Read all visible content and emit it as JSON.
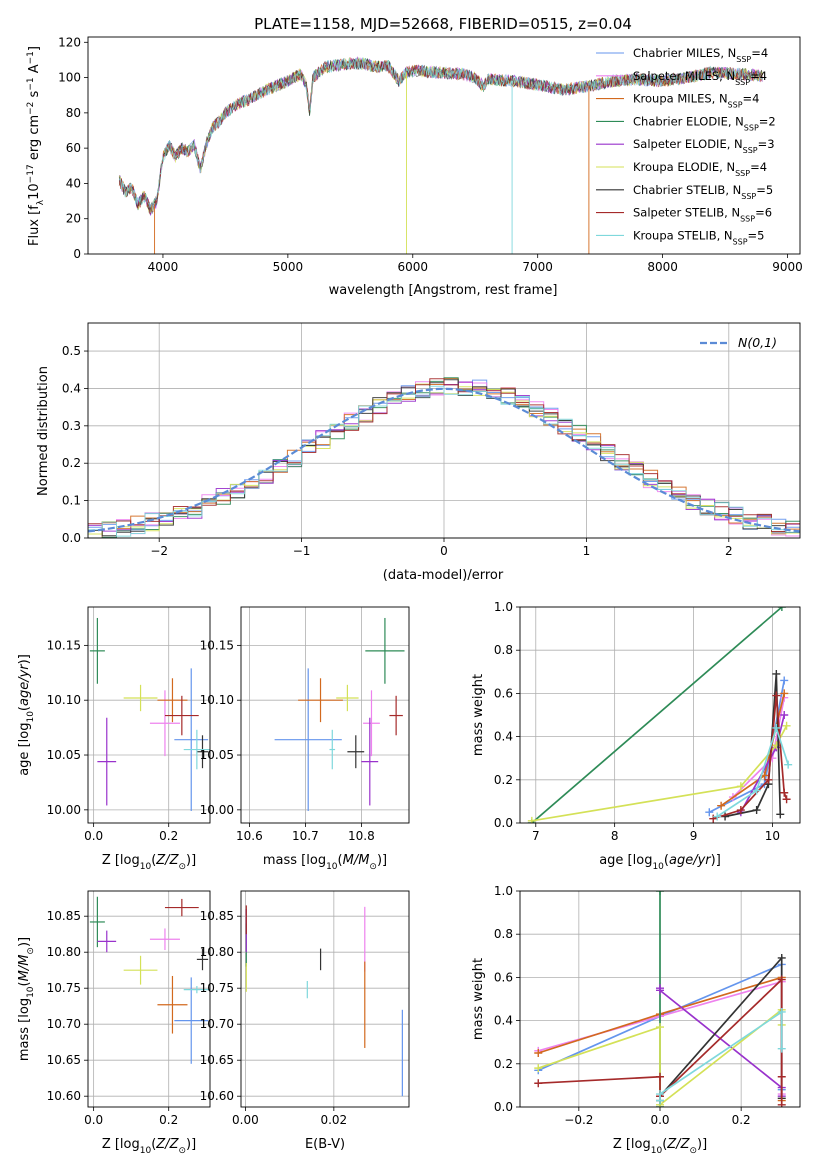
{
  "figure": {
    "title": "PLATE=1158, MJD=52668, FIBERID=0515, z=0.04"
  },
  "chart_data": [
    {
      "id": "spectrum",
      "type": "line",
      "xlabel": "wavelength [Angstrom, rest frame]",
      "ylabel": "Flux [f_λ 10^-17 erg cm^-2 s^-1 A^-1]",
      "xlim": [
        3400,
        9100
      ],
      "ylim": [
        0,
        123
      ],
      "xticks": [
        4000,
        5000,
        6000,
        7000,
        8000,
        9000
      ],
      "yticks": [
        0,
        20,
        40,
        60,
        80,
        100,
        120
      ],
      "grid": false,
      "legend_position": "upper-right",
      "flux_profile": {
        "x": [
          3650,
          3700,
          3750,
          3800,
          3850,
          3900,
          3950,
          4000,
          4050,
          4100,
          4150,
          4200,
          4250,
          4300,
          4350,
          4400,
          4450,
          4500,
          4600,
          4700,
          4800,
          4900,
          5000,
          5100,
          5150,
          5175,
          5200,
          5300,
          5400,
          5500,
          5600,
          5700,
          5800,
          5890,
          5950,
          6000,
          6200,
          6400,
          6500,
          6563,
          6600,
          6800,
          7000,
          7200,
          7400,
          7600,
          7800,
          8000,
          8200,
          8400,
          8600,
          8800
        ],
        "y": [
          42,
          35,
          38,
          28,
          33,
          25,
          30,
          55,
          62,
          55,
          60,
          58,
          62,
          48,
          63,
          72,
          75,
          80,
          85,
          88,
          92,
          95,
          98,
          102,
          95,
          80,
          100,
          106,
          107,
          108,
          108,
          106,
          107,
          98,
          103,
          104,
          103,
          102,
          100,
          95,
          99,
          98,
          96,
          93,
          95,
          98,
          99,
          98,
          100,
          103,
          102,
          101
        ]
      },
      "series": [
        {
          "name": "Chabrier MILES, N_SSP=4",
          "color": "#6495ed"
        },
        {
          "name": "Salpeter MILES, N_SSP=4",
          "color": "#ee82ee"
        },
        {
          "name": "Kroupa MILES, N_SSP=4",
          "color": "#d2691e"
        },
        {
          "name": "Chabrier ELODIE, N_SSP=2",
          "color": "#2e8b57"
        },
        {
          "name": "Salpeter ELODIE, N_SSP=3",
          "color": "#9932cc"
        },
        {
          "name": "Kroupa ELODIE, N_SSP=4",
          "color": "#d4e157"
        },
        {
          "name": "Chabrier STELIB, N_SSP=5",
          "color": "#333333"
        },
        {
          "name": "Salpeter STELIB, N_SSP=6",
          "color": "#a52a2a"
        },
        {
          "name": "Kroupa STELIB, N_SSP=5",
          "color": "#7fd8dc"
        }
      ]
    },
    {
      "id": "residuals",
      "type": "area",
      "xlabel": "(data-model)/error",
      "ylabel": "Normed distribution",
      "xlim": [
        -2.5,
        2.5
      ],
      "ylim": [
        0,
        0.575
      ],
      "xticks": [
        -2,
        -1,
        0,
        1,
        2
      ],
      "yticks": [
        0.0,
        0.1,
        0.2,
        0.3,
        0.4,
        0.5
      ],
      "grid": true,
      "legend": "N(0,1)",
      "legend_position": "upper-right",
      "reference": {
        "type": "gaussian",
        "mean": 0,
        "sigma": 1,
        "color": "#5b8bd6"
      }
    },
    {
      "id": "age-vs-metallicity",
      "type": "scatter",
      "xlabel": "Z [log10(Z/Z⊙)]",
      "ylabel": "age [log10(age/yr)]",
      "xlim": [
        -0.015,
        0.31
      ],
      "ylim": [
        9.988,
        10.185
      ],
      "xticks": [
        0.0,
        0.2
      ],
      "yticks": [
        10.0,
        10.05,
        10.1,
        10.15
      ],
      "grid": true,
      "points": [
        {
          "series": 0,
          "x": 0.26,
          "y": 10.064,
          "xerr": 0.045,
          "yerr": 0.065
        },
        {
          "series": 1,
          "x": 0.19,
          "y": 10.079,
          "xerr": 0.04,
          "yerr": 0.03
        },
        {
          "series": 2,
          "x": 0.21,
          "y": 10.1,
          "xerr": 0.04,
          "yerr": 0.02
        },
        {
          "series": 3,
          "x": 0.01,
          "y": 10.145,
          "xerr": 0.02,
          "yerr": 0.03
        },
        {
          "series": 4,
          "x": 0.035,
          "y": 10.044,
          "xerr": 0.025,
          "yerr": 0.04
        },
        {
          "series": 5,
          "x": 0.125,
          "y": 10.102,
          "xerr": 0.045,
          "yerr": 0.012
        },
        {
          "series": 6,
          "x": 0.29,
          "y": 10.053,
          "xerr": 0.015,
          "yerr": 0.015
        },
        {
          "series": 7,
          "x": 0.235,
          "y": 10.086,
          "xerr": 0.045,
          "yerr": 0.018
        },
        {
          "series": 8,
          "x": 0.275,
          "y": 10.055,
          "xerr": 0.035,
          "yerr": 0.018
        }
      ]
    },
    {
      "id": "age-vs-mass",
      "type": "scatter",
      "xlabel": "mass [log10(M/M⊙)]",
      "ylabel": "",
      "xlim": [
        10.585,
        10.885
      ],
      "ylim": [
        9.988,
        10.185
      ],
      "xticks": [
        10.6,
        10.7,
        10.8
      ],
      "yticks": [
        10.0,
        10.05,
        10.1,
        10.15
      ],
      "grid": true,
      "points": [
        {
          "series": 0,
          "x": 10.705,
          "y": 10.064,
          "xerr": 0.06,
          "yerr": 0.065
        },
        {
          "series": 1,
          "x": 10.818,
          "y": 10.079,
          "xerr": 0.015,
          "yerr": 0.03
        },
        {
          "series": 2,
          "x": 10.727,
          "y": 10.1,
          "xerr": 0.04,
          "yerr": 0.02
        },
        {
          "series": 3,
          "x": 10.842,
          "y": 10.145,
          "xerr": 0.035,
          "yerr": 0.03
        },
        {
          "series": 4,
          "x": 10.815,
          "y": 10.044,
          "xerr": 0.015,
          "yerr": 0.04
        },
        {
          "series": 5,
          "x": 10.775,
          "y": 10.102,
          "xerr": 0.02,
          "yerr": 0.012
        },
        {
          "series": 6,
          "x": 10.79,
          "y": 10.053,
          "xerr": 0.015,
          "yerr": 0.015
        },
        {
          "series": 7,
          "x": 10.862,
          "y": 10.086,
          "xerr": 0.012,
          "yerr": 0.018
        },
        {
          "series": 8,
          "x": 10.748,
          "y": 10.055,
          "xerr": 0.005,
          "yerr": 0.018
        }
      ]
    },
    {
      "id": "mass-weight-vs-age",
      "type": "line",
      "xlabel": "age [log10(age/yr)]",
      "ylabel": "mass weight",
      "xlim": [
        6.8,
        10.35
      ],
      "ylim": [
        0,
        1.0
      ],
      "xticks": [
        7,
        8,
        9,
        10
      ],
      "yticks": [
        0.0,
        0.2,
        0.4,
        0.6,
        0.8,
        1.0
      ],
      "grid": true,
      "series": [
        {
          "series": 0,
          "x": [
            9.2,
            9.9,
            10.15
          ],
          "y": [
            0.05,
            0.18,
            0.66
          ]
        },
        {
          "series": 1,
          "x": [
            9.5,
            10.0,
            10.15
          ],
          "y": [
            0.12,
            0.3,
            0.58
          ]
        },
        {
          "series": 2,
          "x": [
            9.35,
            9.9,
            10.15
          ],
          "y": [
            0.08,
            0.22,
            0.6
          ]
        },
        {
          "series": 3,
          "x": [
            6.95,
            10.12
          ],
          "y": [
            0.0,
            1.0
          ]
        },
        {
          "series": 4,
          "x": [
            9.6,
            10.05,
            10.15
          ],
          "y": [
            0.05,
            0.35,
            0.5
          ]
        },
        {
          "series": 5,
          "x": [
            6.95,
            9.6,
            10.05,
            10.18
          ],
          "y": [
            0.01,
            0.17,
            0.36,
            0.45
          ]
        },
        {
          "series": 6,
          "x": [
            9.4,
            9.8,
            9.95,
            10.05,
            10.1
          ],
          "y": [
            0.03,
            0.06,
            0.18,
            0.69,
            0.04
          ]
        },
        {
          "series": 7,
          "x": [
            9.25,
            9.6,
            9.95,
            10.05,
            10.15,
            10.18
          ],
          "y": [
            0.02,
            0.06,
            0.2,
            0.59,
            0.14,
            0.11
          ]
        },
        {
          "series": 8,
          "x": [
            9.3,
            9.8,
            10.05,
            10.2
          ],
          "y": [
            0.03,
            0.15,
            0.44,
            0.27
          ]
        }
      ]
    },
    {
      "id": "mass-vs-metallicity",
      "type": "scatter",
      "xlabel": "Z [log10(Z/Z⊙)]",
      "ylabel": "mass [log10(M/M⊙)]",
      "xlim": [
        -0.015,
        0.31
      ],
      "ylim": [
        10.585,
        10.885
      ],
      "xticks": [
        0.0,
        0.2
      ],
      "yticks": [
        10.6,
        10.65,
        10.7,
        10.75,
        10.8,
        10.85
      ],
      "grid": true,
      "points": [
        {
          "series": 0,
          "x": 0.26,
          "y": 10.705,
          "xerr": 0.045,
          "yerr": 0.06
        },
        {
          "series": 1,
          "x": 0.19,
          "y": 10.818,
          "xerr": 0.04,
          "yerr": 0.015
        },
        {
          "series": 2,
          "x": 0.21,
          "y": 10.727,
          "xerr": 0.04,
          "yerr": 0.04
        },
        {
          "series": 3,
          "x": 0.01,
          "y": 10.842,
          "xerr": 0.02,
          "yerr": 0.035
        },
        {
          "series": 4,
          "x": 0.035,
          "y": 10.815,
          "xerr": 0.025,
          "yerr": 0.015
        },
        {
          "series": 5,
          "x": 0.125,
          "y": 10.775,
          "xerr": 0.045,
          "yerr": 0.02
        },
        {
          "series": 6,
          "x": 0.29,
          "y": 10.79,
          "xerr": 0.015,
          "yerr": 0.015
        },
        {
          "series": 7,
          "x": 0.235,
          "y": 10.862,
          "xerr": 0.045,
          "yerr": 0.012
        },
        {
          "series": 8,
          "x": 0.275,
          "y": 10.748,
          "xerr": 0.035,
          "yerr": 0.005
        }
      ]
    },
    {
      "id": "mass-vs-extinction",
      "type": "scatter",
      "xlabel": "E(B-V)",
      "ylabel": "",
      "xlim": [
        -0.001,
        0.037
      ],
      "ylim": [
        10.585,
        10.885
      ],
      "xticks": [
        0.0,
        0.02
      ],
      "yticks": [
        10.6,
        10.65,
        10.7,
        10.75,
        10.8,
        10.85
      ],
      "grid": true,
      "points": [
        {
          "series": 0,
          "x": 0.0355,
          "y": 10.66,
          "xerr": 0.0,
          "yerr": 0.06
        },
        {
          "series": 1,
          "x": 0.027,
          "y": 10.818,
          "xerr": 0.0,
          "yerr": 0.045
        },
        {
          "series": 2,
          "x": 0.027,
          "y": 10.727,
          "xerr": 0.0,
          "yerr": 0.06
        },
        {
          "series": 3,
          "x": 0.0002,
          "y": 10.81,
          "xerr": 0.0,
          "yerr": 0.03
        },
        {
          "series": 4,
          "x": 0.0002,
          "y": 10.83,
          "xerr": 0.0,
          "yerr": 0.03
        },
        {
          "series": 5,
          "x": 0.0002,
          "y": 10.765,
          "xerr": 0.0,
          "yerr": 0.02
        },
        {
          "series": 6,
          "x": 0.017,
          "y": 10.79,
          "xerr": 0.0,
          "yerr": 0.015
        },
        {
          "series": 7,
          "x": 0.0002,
          "y": 10.845,
          "xerr": 0.0,
          "yerr": 0.02
        },
        {
          "series": 8,
          "x": 0.014,
          "y": 10.748,
          "xerr": 0.0,
          "yerr": 0.012
        }
      ]
    },
    {
      "id": "mass-weight-vs-metallicity",
      "type": "line",
      "xlabel": "Z [log10(Z/Z⊙)]",
      "ylabel": "mass weight",
      "xlim": [
        -0.345,
        0.345
      ],
      "ylim": [
        0,
        1.0
      ],
      "xticks": [
        -0.2,
        0.0,
        0.2
      ],
      "yticks": [
        0.0,
        0.2,
        0.4,
        0.6,
        0.8,
        1.0
      ],
      "grid": true,
      "series": [
        {
          "series": 0,
          "x": [
            -0.3,
            0.0,
            0.3,
            0.3
          ],
          "y": [
            0.17,
            0.42,
            0.66,
            0.08
          ]
        },
        {
          "series": 1,
          "x": [
            -0.3,
            0.0,
            0.3,
            0.3
          ],
          "y": [
            0.26,
            0.42,
            0.58,
            0.06
          ]
        },
        {
          "series": 2,
          "x": [
            -0.3,
            0.0,
            0.3,
            0.3
          ],
          "y": [
            0.25,
            0.43,
            0.6,
            0.03
          ]
        },
        {
          "series": 3,
          "x": [
            0.0,
            0.0
          ],
          "y": [
            0.0,
            1.0
          ]
        },
        {
          "series": 4,
          "x": [
            0.0,
            0.0,
            0.3,
            0.3
          ],
          "y": [
            0.55,
            0.54,
            0.09,
            0.05
          ]
        },
        {
          "series": 5,
          "x": [
            -0.3,
            0.0,
            0.0,
            0.3,
            0.3
          ],
          "y": [
            0.18,
            0.37,
            0.01,
            0.45,
            0.38
          ]
        },
        {
          "series": 6,
          "x": [
            0.0,
            0.0,
            0.3,
            0.3
          ],
          "y": [
            0.03,
            0.05,
            0.69,
            0.04
          ]
        },
        {
          "series": 7,
          "x": [
            -0.3,
            0.0,
            0.0,
            0.3,
            0.3,
            0.3
          ],
          "y": [
            0.11,
            0.14,
            0.05,
            0.59,
            0.14,
            0.01
          ]
        },
        {
          "series": 8,
          "x": [
            0.0,
            0.0,
            0.3,
            0.3
          ],
          "y": [
            0.03,
            0.06,
            0.44,
            0.27
          ]
        }
      ]
    }
  ]
}
